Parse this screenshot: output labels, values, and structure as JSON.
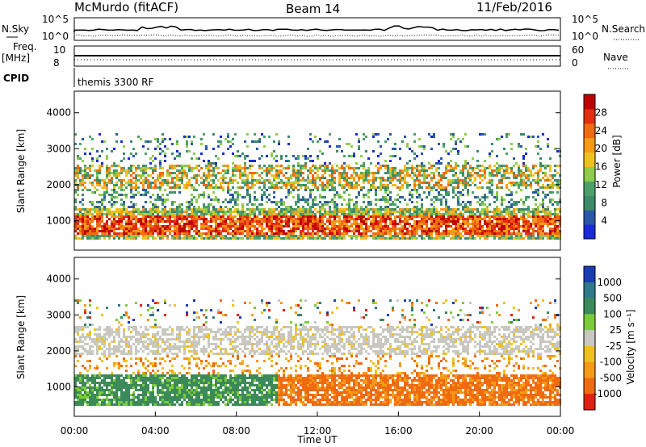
{
  "header": {
    "station": "McMurdo (fitACF)",
    "beam": "Beam 14",
    "date": "11/Feb/2016"
  },
  "strip_labels": {
    "nsky": "N.Sky",
    "freq": "Freq.",
    "freq_unit": "[MHz]",
    "cpid": "CPID",
    "nsearch": "N.Search",
    "nave": "Nave",
    "noise_left_top": "10^5",
    "noise_left_bottom": "10^0",
    "noise_right_top": "10^5",
    "noise_right_bottom": "10^0",
    "freq_top": "10",
    "freq_bottom": "8",
    "nave_top": "60",
    "nave_bottom": "0",
    "cpid_text": "themis 3300 RF"
  },
  "chart_data": [
    {
      "type": "heatmap",
      "name": "power",
      "ylabel": "Slant Range [km]",
      "yticks": [
        1000,
        2000,
        3000,
        4000
      ],
      "ylim": [
        180,
        4600
      ],
      "xlim": [
        0,
        24
      ],
      "colorbar": {
        "label": "Power [dB]",
        "ticks": [
          "4",
          "8",
          "12",
          "16",
          "20",
          "24",
          "28"
        ],
        "colors": [
          "#1a2ad6",
          "#2c56a8",
          "#3d8a6a",
          "#4ea06a",
          "#8fcc4a",
          "#f0c020",
          "#f49a18",
          "#f06a10",
          "#e03010",
          "#c00000"
        ]
      },
      "bands": [
        {
          "range": [
            500,
            1400
          ],
          "value_hint": "strong",
          "t": [
            0,
            24
          ]
        },
        {
          "range": [
            1400,
            2000
          ],
          "value_hint": "medium",
          "t": [
            0,
            24
          ]
        },
        {
          "range": [
            2000,
            2600
          ],
          "value_hint": "strong",
          "t": [
            0,
            24
          ]
        },
        {
          "range": [
            2600,
            3500
          ],
          "value_hint": "weak",
          "t": [
            0,
            24
          ]
        }
      ]
    },
    {
      "type": "heatmap",
      "name": "velocity",
      "ylabel": "Slant Range [km]",
      "xlabel": "Time UT",
      "yticks": [
        1000,
        2000,
        3000,
        4000
      ],
      "xticks": [
        "00:00",
        "04:00",
        "08:00",
        "12:00",
        "16:00",
        "20:00",
        "00:00"
      ],
      "ylim": [
        180,
        4600
      ],
      "xlim": [
        0,
        24
      ],
      "colorbar": {
        "label": "Velocity [m s⁻¹]",
        "ticks": [
          "1000",
          "500",
          "100",
          "25",
          "-25",
          "-100",
          "-500",
          "-1000"
        ],
        "colors": [
          "#1a3cb0",
          "#2e7a8a",
          "#3c8a5a",
          "#7ccc3a",
          "#c8c8c0",
          "#f0c020",
          "#f49a18",
          "#f06a10",
          "#e02010"
        ]
      },
      "bands": [
        {
          "range": [
            500,
            1400
          ],
          "t": [
            0,
            10
          ],
          "value_hint": "green"
        },
        {
          "range": [
            500,
            1400
          ],
          "t": [
            10,
            24
          ],
          "value_hint": "orange"
        },
        {
          "range": [
            2000,
            2700
          ],
          "t": [
            0,
            24
          ],
          "value_hint": "grey"
        }
      ]
    }
  ]
}
